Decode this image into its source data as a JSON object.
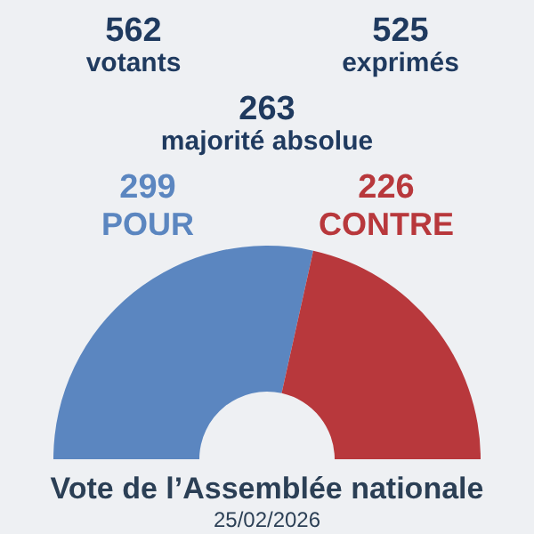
{
  "chart_data": {
    "type": "donut",
    "title": "Vote de l’Assemblée nationale",
    "subtitle": "25/02/2026",
    "annotations": [
      "562 votants",
      "525 exprimés",
      "263 majorité absolue"
    ],
    "categories": [
      "POUR",
      "CONTRE"
    ],
    "values": [
      299,
      226
    ],
    "colors": [
      "#5b86c0",
      "#b8383c"
    ],
    "data_labels": true
  }
}
